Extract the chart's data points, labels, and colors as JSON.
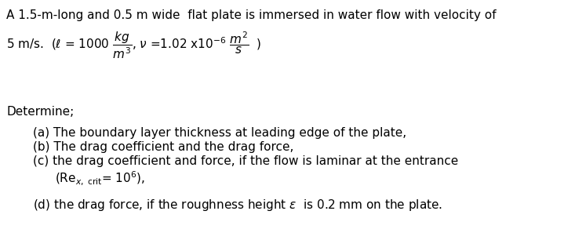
{
  "bg_color": "#ffffff",
  "text_color": "#000000",
  "figsize": [
    7.47,
    3.2
  ],
  "dpi": 100,
  "line1": "A 1.5-m-long and 0.5 m wide  flat plate is immersed in water flow with velocity of",
  "line3": "Determine;",
  "item_a": "(a) The boundary layer thickness at leading edge of the plate,",
  "item_b": "(b) The drag coefficient and the drag force,",
  "item_c1": "(c) the drag coefficient and force, if the flow is laminar at the entrance",
  "item_c2": "(Re$_{x,\\ \\mathrm{crit}}$= 10$^6$),",
  "item_d": "(d) the drag force, if the roughness height $\\varepsilon$  is 0.2 mm on the plate.",
  "formula_line": "5 m/s.  ($\\ell$ = 1000 $\\frac{kg}{m^3}$, $\\nu$ =1.02 x10$^{-6}$ $\\frac{m^2}{s}$  )",
  "font_size_main": 11.0,
  "indent_items": 0.055,
  "indent_c2": 0.085
}
